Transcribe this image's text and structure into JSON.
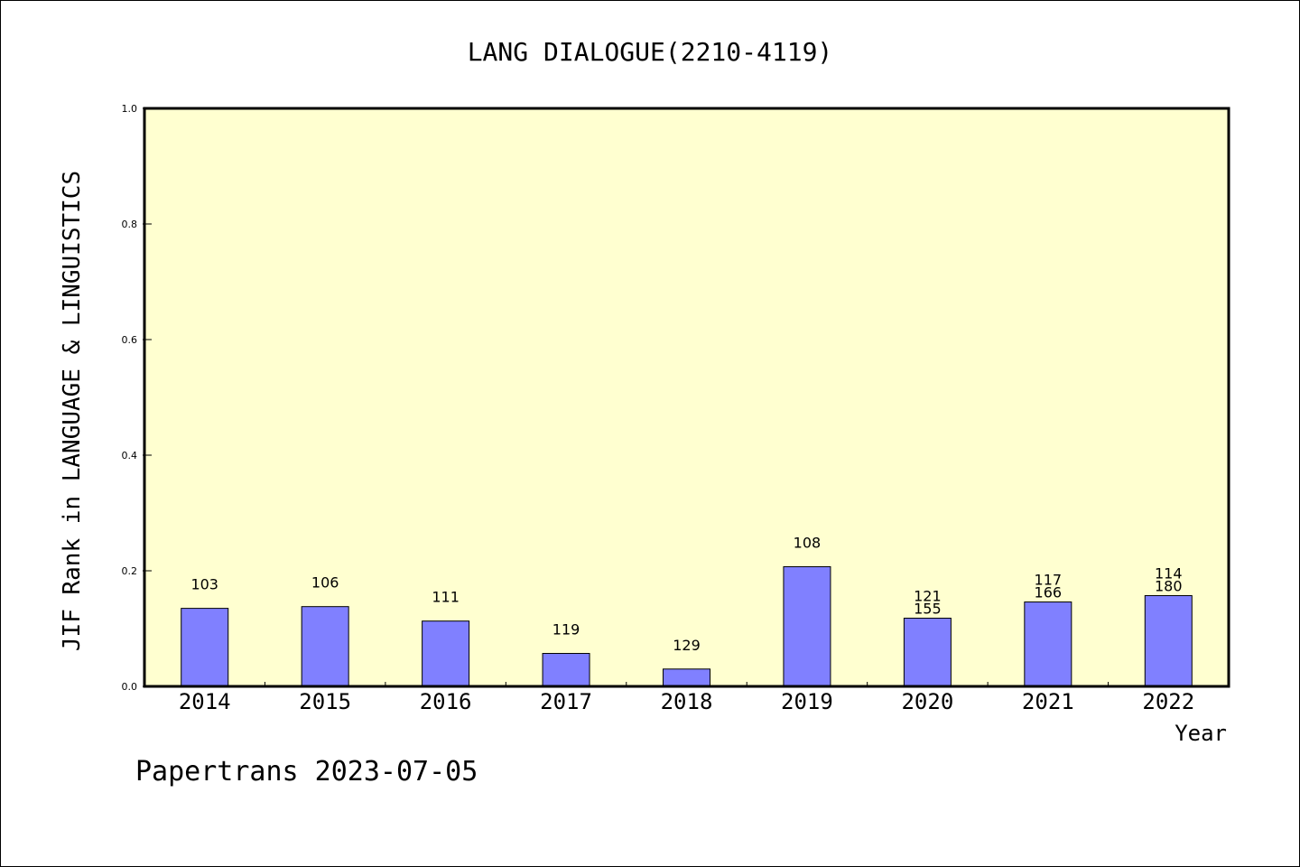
{
  "footer": "Papertrans 2023-07-05",
  "chart_data": {
    "type": "bar",
    "title": "LANG DIALOGUE(2210-4119)",
    "xlabel": "Year",
    "ylabel": "JIF Rank in LANGUAGE & LINGUISTICS",
    "ylim": [
      0,
      1.0
    ],
    "yticks": [
      "0.0",
      "0.2",
      "0.4",
      "0.6",
      "0.8",
      "1.0"
    ],
    "categories": [
      "2014",
      "2015",
      "2016",
      "2017",
      "2018",
      "2019",
      "2020",
      "2021",
      "2022"
    ],
    "values": [
      0.135,
      0.138,
      0.113,
      0.057,
      0.03,
      0.207,
      0.118,
      0.146,
      0.157
    ],
    "labels": [
      [
        "103"
      ],
      [
        "106"
      ],
      [
        "111"
      ],
      [
        "119"
      ],
      [
        "129"
      ],
      [
        "108"
      ],
      [
        "121",
        "155"
      ],
      [
        "117",
        "166"
      ],
      [
        "114",
        "180"
      ]
    ],
    "grid": false,
    "colors": {
      "plot_background": "#ffffd0",
      "bar_fill": "#8080ff",
      "bar_stroke": "#000000"
    }
  }
}
